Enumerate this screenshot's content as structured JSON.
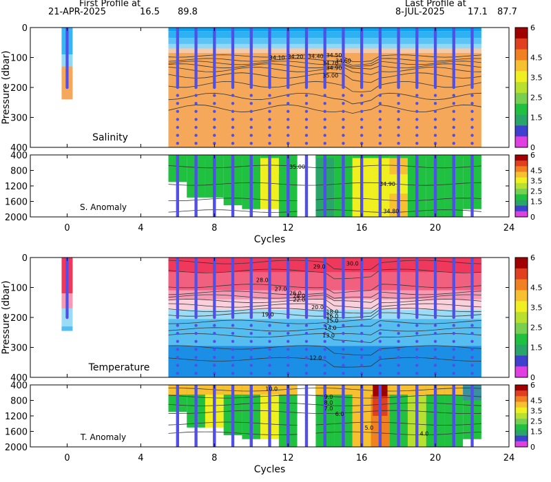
{
  "header": {
    "first_label": "First Profile at",
    "first_date": "21-APR-2025",
    "first_lat": "16.5",
    "first_lon": "89.8",
    "last_label": "Last Profile at",
    "last_date": "8-JUL-2025",
    "last_lat": "17.1",
    "last_lon": "87.7"
  },
  "chart_data": {
    "type": "heatmap",
    "xlabel": "Cycles",
    "xlim": [
      -2,
      24
    ],
    "xticks": [
      0,
      4,
      8,
      12,
      16,
      20,
      24
    ],
    "ylabel": "Pressure (dbar)",
    "profile_cycles": [
      0,
      6,
      7,
      8,
      9,
      10,
      11,
      12,
      13,
      14,
      15,
      16,
      17,
      18,
      19,
      20,
      21,
      22
    ],
    "colorbar_ticks": [
      "0",
      "1.5",
      "2.5",
      "3.5",
      "4.5",
      "6"
    ],
    "colorbar_colors": [
      "#e040e0",
      "#3f3fd0",
      "#2aa56a",
      "#20c040",
      "#77d050",
      "#b8e030",
      "#f0f020",
      "#f7c030",
      "#f08020",
      "#e04020",
      "#a00000"
    ],
    "panels": [
      {
        "id": "salinity",
        "title": "Salinity",
        "ylim": [
          0,
          400
        ],
        "yticks": [
          0,
          100,
          200,
          300,
          400
        ],
        "contour_labels": [
          "34.10",
          "34.20",
          "34.40",
          "34.50",
          "34.60",
          "34.70",
          "34.90",
          "35.00"
        ]
      },
      {
        "id": "s-anomaly",
        "title": "S. Anomaly",
        "ylim": [
          400,
          2000
        ],
        "yticks": [
          400,
          800,
          1200,
          1600,
          2000
        ],
        "contour_labels": [
          "35.00",
          "34.90",
          "34.80"
        ]
      },
      {
        "id": "temperature",
        "title": "Temperature",
        "ylim": [
          0,
          400
        ],
        "yticks": [
          0,
          100,
          200,
          300,
          400
        ],
        "contour_labels": [
          "30.0",
          "29.0",
          "28.0",
          "27.0",
          "26.0",
          "24.0",
          "22.0",
          "20.0",
          "19.0",
          "18.0",
          "16.0",
          "15.0",
          "14.0",
          "13.0",
          "12.0"
        ]
      },
      {
        "id": "t-anomaly",
        "title": "T. Anomaly",
        "ylim": [
          400,
          2000
        ],
        "yticks": [
          400,
          800,
          1200,
          1600,
          2000
        ],
        "contour_labels": [
          "10.0",
          "9.0",
          "8.0",
          "7.0",
          "6.0",
          "5.0",
          "4.0"
        ]
      }
    ]
  }
}
